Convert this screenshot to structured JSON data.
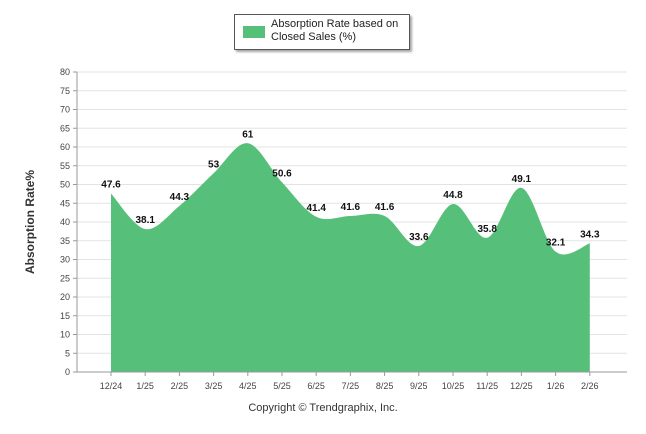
{
  "chart_data": {
    "type": "area",
    "legend": "Absorption Rate based on Closed Sales (%)",
    "ylabel": "Absorption Rate%",
    "xlabel": "",
    "categories": [
      "12/24",
      "1/25",
      "2/25",
      "3/25",
      "4/25",
      "5/25",
      "6/25",
      "7/25",
      "8/25",
      "9/25",
      "10/25",
      "11/25",
      "12/25",
      "1/26",
      "2/26"
    ],
    "series": [
      {
        "name": "Absorption Rate based on Closed Sales (%)",
        "values": [
          47.6,
          38.1,
          44.3,
          53,
          61,
          50.6,
          41.4,
          41.6,
          41.6,
          33.6,
          44.8,
          35.8,
          49.1,
          32.1,
          34.3
        ],
        "labels": [
          "47.6",
          "38.1",
          "44.3",
          "53",
          "61",
          "50.6",
          "41.4",
          "41.6",
          "41.6",
          "33.6",
          "44.8",
          "35.8",
          "49.1",
          "32.1",
          "34.3"
        ]
      }
    ],
    "ylim": [
      0,
      80
    ],
    "yticks": [
      "0",
      "5",
      "10",
      "15",
      "20",
      "25",
      "30",
      "35",
      "40",
      "45",
      "50",
      "55",
      "60",
      "65",
      "70",
      "75",
      "80"
    ],
    "grid": true,
    "legend_position": "top-center",
    "colors": {
      "fill": "#56c07a",
      "grid": "#e3e3e3",
      "axis": "#999999"
    }
  },
  "footer": {
    "copyright": "Copyright © Trendgraphix, Inc."
  }
}
